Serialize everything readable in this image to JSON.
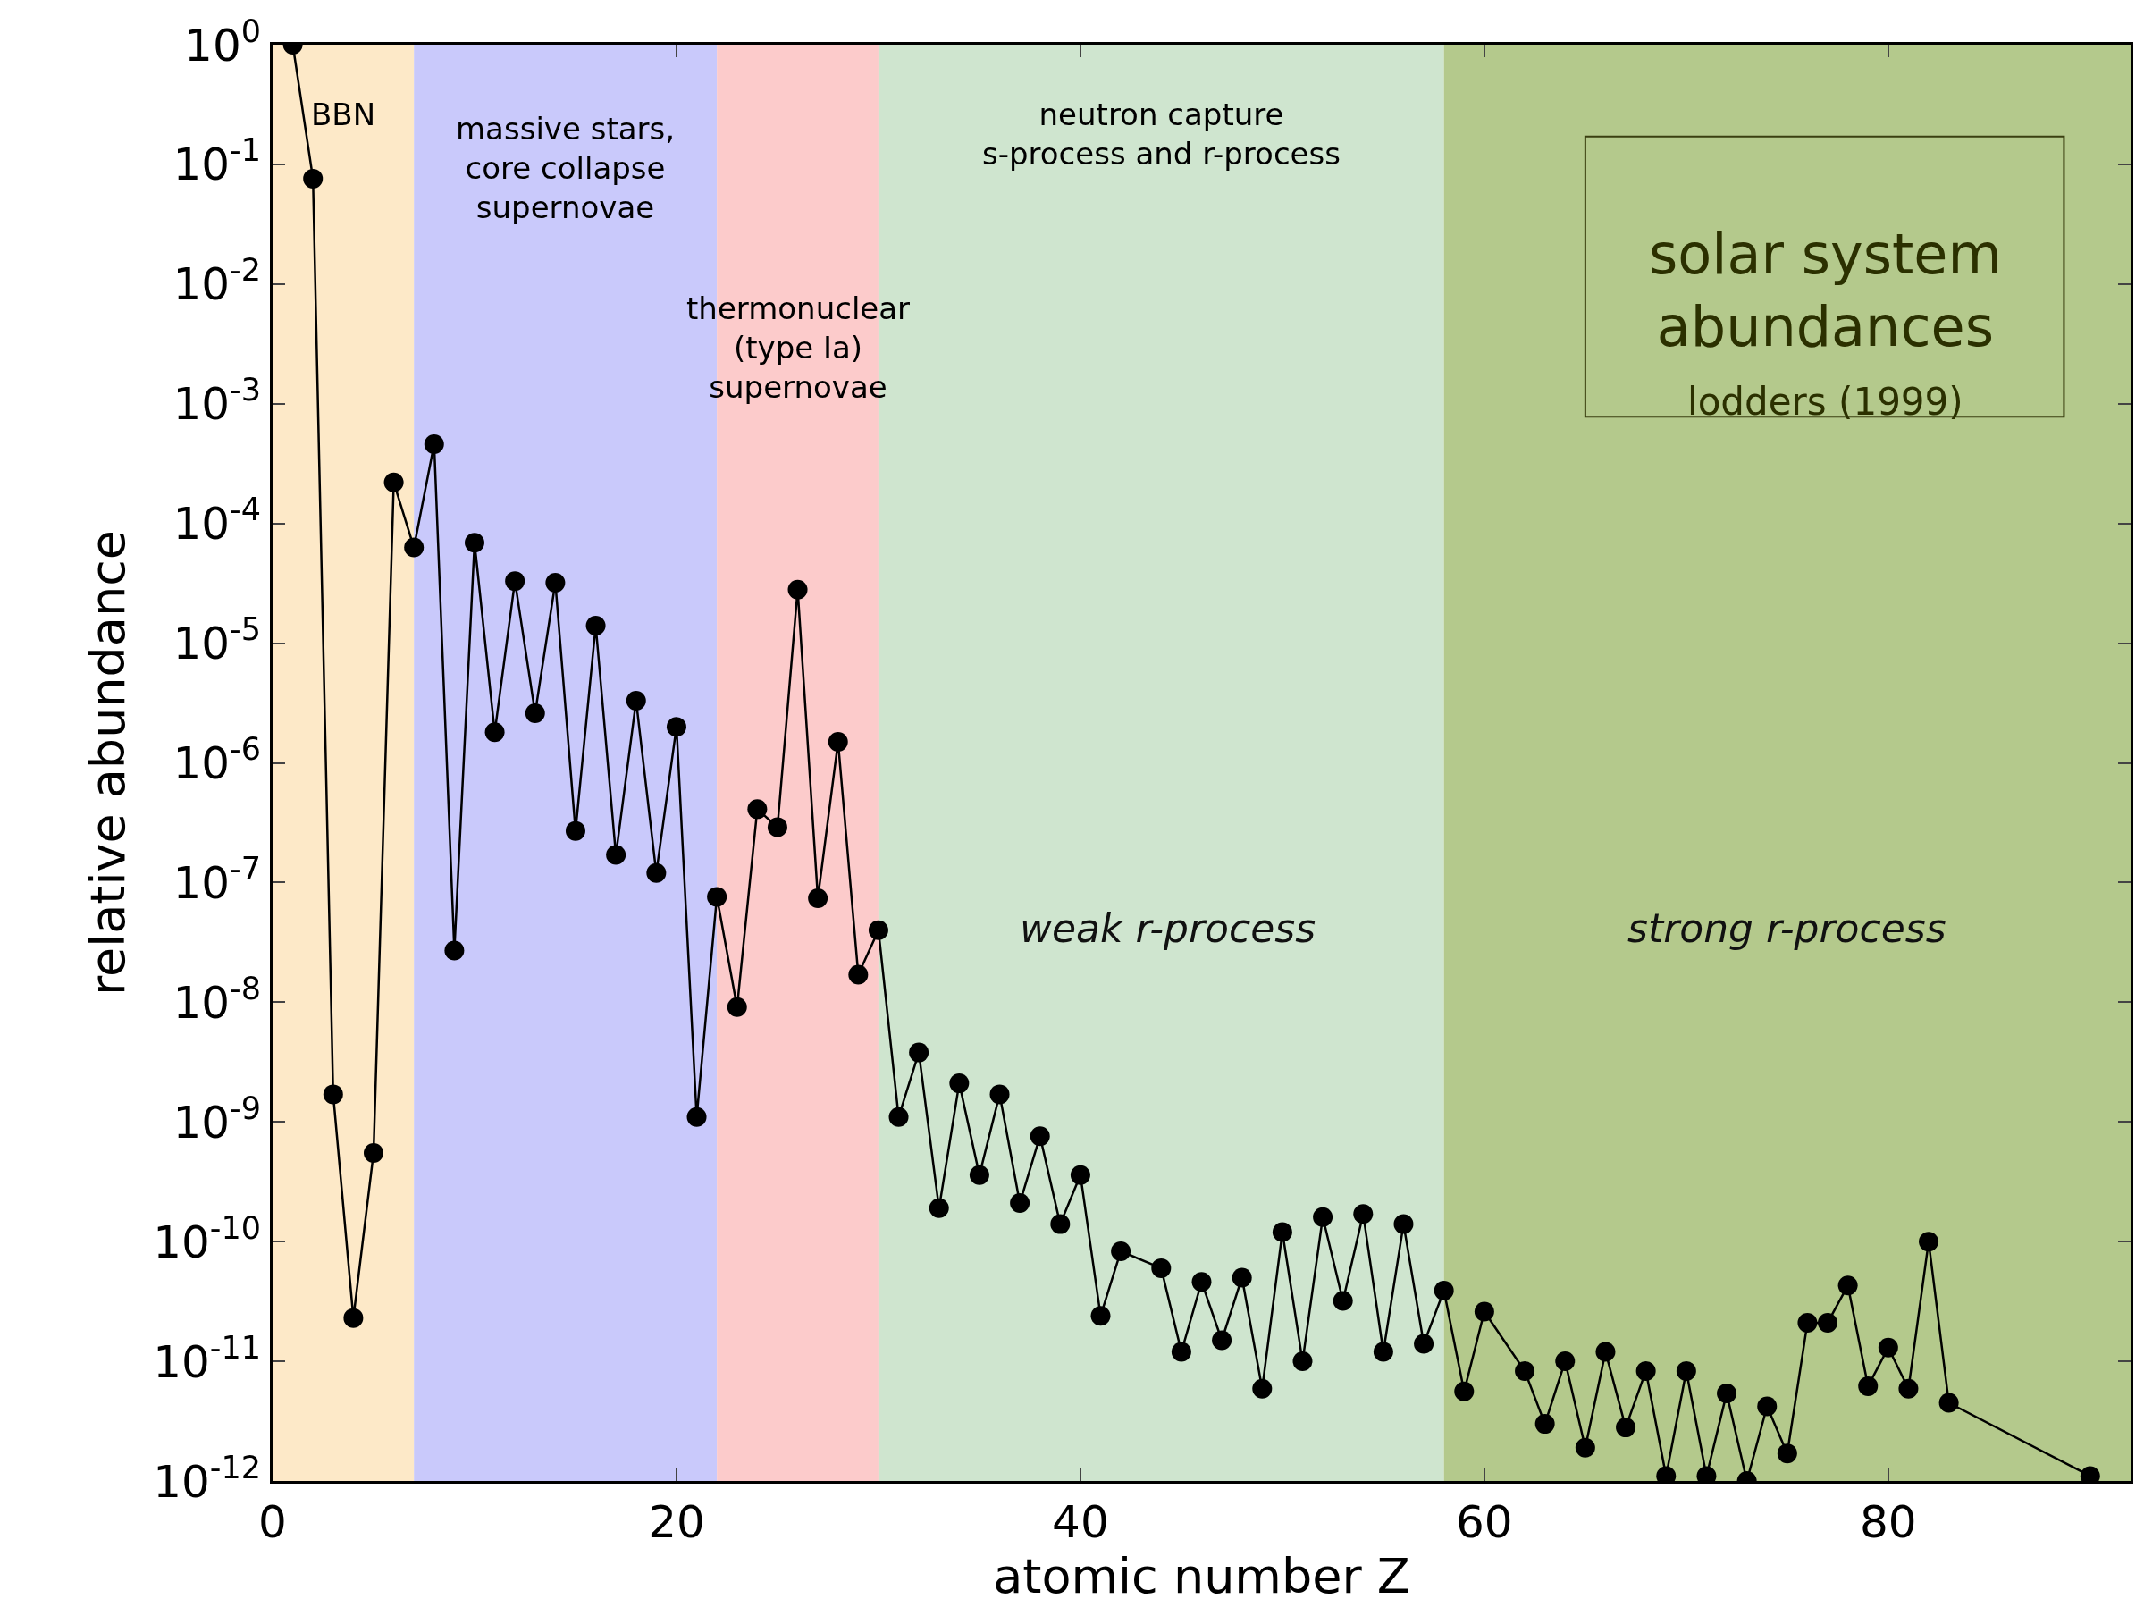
{
  "chart_data": {
    "type": "line",
    "xlabel": "atomic number Z",
    "ylabel": "relative abundance",
    "log": "y",
    "x": [
      1,
      2,
      3,
      4,
      5,
      6,
      7,
      8,
      9,
      10,
      11,
      12,
      13,
      14,
      15,
      16,
      17,
      18,
      19,
      20,
      21,
      22,
      23,
      24,
      25,
      26,
      27,
      28,
      29,
      30,
      31,
      32,
      33,
      34,
      35,
      36,
      37,
      38,
      39,
      40,
      41,
      42,
      44,
      45,
      46,
      47,
      48,
      49,
      50,
      51,
      52,
      53,
      54,
      55,
      56,
      57,
      58,
      59,
      60,
      62,
      63,
      64,
      65,
      66,
      67,
      68,
      69,
      70,
      71,
      72,
      73,
      74,
      75,
      76,
      77,
      78,
      79,
      80,
      81,
      82,
      83,
      90
    ],
    "series": [
      {
        "color": "#000000",
        "values": [
          1.0,
          0.076,
          1.7e-09,
          2.3e-11,
          5.5e-10,
          0.00022,
          6.3e-05,
          0.00046,
          2.7e-08,
          6.9e-05,
          1.8e-06,
          3.3e-05,
          2.6e-06,
          3.2e-05,
          2.7e-07,
          1.4e-05,
          1.7e-07,
          3.3e-06,
          1.2e-07,
          2e-06,
          1.1e-09,
          7.6e-08,
          9.1e-09,
          4.1e-07,
          2.9e-07,
          2.8e-05,
          7.4e-08,
          1.5e-06,
          1.7e-08,
          4e-08,
          1.1e-09,
          3.8e-09,
          1.9e-10,
          2.1e-09,
          3.6e-10,
          1.7e-09,
          2.1e-10,
          7.6e-10,
          1.4e-10,
          3.6e-10,
          2.4e-11,
          8.3e-11,
          6e-11,
          1.2e-11,
          4.6e-11,
          1.5e-11,
          5e-11,
          5.9e-12,
          1.2e-10,
          1e-11,
          1.6e-10,
          3.2e-11,
          1.7e-10,
          1.2e-11,
          1.4e-10,
          1.4e-11,
          3.9e-11,
          5.6e-12,
          2.6e-11,
          8.3e-12,
          3e-12,
          1e-11,
          1.9e-12,
          1.2e-11,
          2.8e-12,
          8.3e-12,
          1.1e-12,
          8.3e-12,
          1.1e-12,
          5.4e-12,
          1e-12,
          4.2e-12,
          1.7e-12,
          2.1e-11,
          2.1e-11,
          4.3e-11,
          6.2e-12,
          1.3e-11,
          5.9e-12,
          1e-10,
          4.5e-12,
          1.1e-12
        ]
      }
    ],
    "marker": "circle",
    "line_style": "solid",
    "grid": false,
    "xlim": [
      0,
      92
    ],
    "xticks": [
      0,
      20,
      40,
      60,
      80
    ],
    "ylim": [
      1e-12,
      1
    ],
    "yticks": [
      {
        "value": 1e-12,
        "label": "10$^{-12}$"
      },
      {
        "value": 1e-11,
        "label": "10$^{-11}$"
      },
      {
        "value": 1e-10,
        "label": "10$^{-10}$"
      },
      {
        "value": 1e-09,
        "label": "10$^{-9}$"
      },
      {
        "value": 1e-08,
        "label": "10$^{-8}$"
      },
      {
        "value": 1e-07,
        "label": "10$^{-7}$"
      },
      {
        "value": 1e-06,
        "label": "10$^{-6}$"
      },
      {
        "value": 1e-05,
        "label": "10$^{-5}$"
      },
      {
        "value": 0.0001,
        "label": "10$^{-4}$"
      },
      {
        "value": 0.001,
        "label": "10$^{-3}$"
      },
      {
        "value": 0.01,
        "label": "10$^{-2}$"
      },
      {
        "value": 0.1,
        "label": "10$^{-1}$"
      },
      {
        "value": 1,
        "label": "10$^{0}$"
      }
    ],
    "bands": [
      {
        "axis": "x",
        "from": 0,
        "to": 7,
        "label": "BBN",
        "color": "#fde9c8"
      },
      {
        "axis": "x",
        "from": 7,
        "to": 22,
        "label": "massive stars,\ncore collapse\nsupernovae",
        "color": "#c9c9fb"
      },
      {
        "axis": "x",
        "from": 22,
        "to": 30,
        "label": "thermonuclear\n(type Ia)\nsupernovae",
        "color": "#fccbcb"
      },
      {
        "axis": "x",
        "from": 30,
        "to": 58,
        "label": "neutron capture\ns-process and r-process",
        "color": "#cfe5cf"
      },
      {
        "axis": "x",
        "from": 58,
        "to": 92,
        "color": "#b4c98c"
      }
    ],
    "annotations": [
      "solar system\nabundances",
      "lodders (1999)",
      "weak r-process",
      "strong r-process"
    ]
  }
}
